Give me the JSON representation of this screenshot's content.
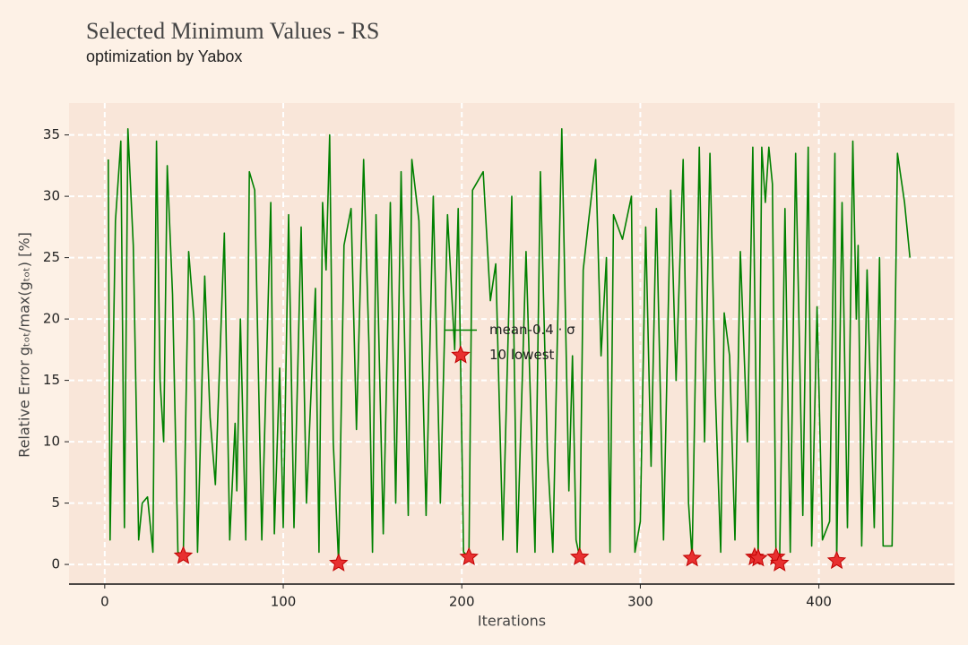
{
  "chart_data": {
    "type": "line",
    "title": "Selected Minimum Values - RS",
    "subtitle": "optimization by Yabox",
    "x_label": "Iterations",
    "y_label": "Relative Error gₜₒₜ/max(gₜₒₜ) [%]",
    "xlim": [
      -20,
      476
    ],
    "ylim": [
      -1.6,
      37.6
    ],
    "xticks": [
      0,
      100,
      200,
      300,
      400
    ],
    "yticks": [
      0,
      5,
      10,
      15,
      20,
      25,
      30,
      35
    ],
    "grid": true,
    "legend": "center",
    "series": [
      {
        "name": "mean-0.4 · σ",
        "type": "line",
        "color": "#008000",
        "x": [
          2,
          3,
          6,
          9,
          11,
          13,
          16,
          19,
          21,
          24,
          27,
          29,
          31,
          33,
          35,
          38,
          41,
          44,
          47,
          50,
          52,
          56,
          59,
          62,
          67,
          70,
          73,
          74,
          76,
          79,
          81,
          84,
          88,
          93,
          95,
          98,
          100,
          103,
          106,
          110,
          113,
          118,
          120,
          122,
          124,
          126,
          128,
          131,
          134,
          138,
          141,
          145,
          148,
          150,
          152,
          156,
          160,
          163,
          166,
          170,
          172,
          176,
          180,
          184,
          188,
          192,
          196,
          198,
          201,
          204,
          206,
          212,
          216,
          219,
          223,
          228,
          231,
          236,
          241,
          244,
          248,
          251,
          256,
          260,
          262,
          264,
          266,
          268,
          271,
          275,
          278,
          281,
          283,
          285,
          290,
          295,
          297,
          300,
          303,
          306,
          309,
          313,
          317,
          320,
          324,
          327,
          329,
          333,
          336,
          339,
          342,
          345,
          347,
          350,
          353,
          356,
          360,
          363,
          366,
          368,
          370,
          372,
          374,
          376,
          378,
          381,
          384,
          387,
          391,
          394,
          396,
          399,
          402,
          406,
          409,
          410,
          413,
          416,
          419,
          421,
          422,
          424,
          427,
          431,
          434,
          436,
          441,
          444,
          448,
          451
        ],
        "values": [
          33,
          2,
          28,
          34.5,
          3,
          35.5,
          26,
          2,
          5,
          5.5,
          1,
          34.5,
          15,
          10,
          32.5,
          22,
          1,
          0.7,
          25.5,
          20,
          1,
          23.5,
          12,
          6.5,
          27,
          2,
          11.5,
          6,
          20,
          2,
          32,
          30.5,
          2,
          29.5,
          2.5,
          16,
          3,
          28.5,
          3,
          27.5,
          5,
          22.5,
          1,
          29.5,
          24,
          35,
          10,
          0.1,
          26,
          29,
          11,
          33,
          18,
          1,
          28.5,
          2.5,
          29.5,
          5,
          32,
          4,
          33,
          28,
          4,
          30,
          5,
          28.5,
          17.5,
          29,
          1,
          0.6,
          30.5,
          32,
          21.5,
          24.5,
          2,
          30,
          1,
          25.5,
          1,
          32,
          9,
          1,
          35.5,
          6,
          17,
          2,
          0.6,
          24,
          28,
          33,
          17,
          25,
          1,
          28.5,
          26.5,
          30,
          1,
          3.5,
          27.5,
          8,
          29,
          2,
          30.5,
          15,
          33,
          5,
          0.5,
          34,
          10,
          33.5,
          14,
          1,
          20.5,
          17,
          2,
          25.5,
          10,
          34,
          0.5,
          34,
          29.5,
          34,
          31,
          0.6,
          0.1,
          29,
          1,
          33.5,
          4,
          34,
          1.5,
          21,
          2,
          3.5,
          33.5,
          0.3,
          29.5,
          3,
          34.5,
          20,
          26,
          1.5,
          24,
          3,
          25,
          1.5,
          1.5,
          33.5,
          29.5,
          25
        ]
      },
      {
        "name": "10 lowest",
        "type": "scatter",
        "color": "#e83030",
        "x": [
          44,
          131,
          204,
          266,
          329,
          364,
          366,
          376,
          378,
          410
        ],
        "values": [
          0.7,
          0.1,
          0.6,
          0.6,
          0.5,
          0.6,
          0.5,
          0.6,
          0.1,
          0.3
        ]
      }
    ]
  }
}
